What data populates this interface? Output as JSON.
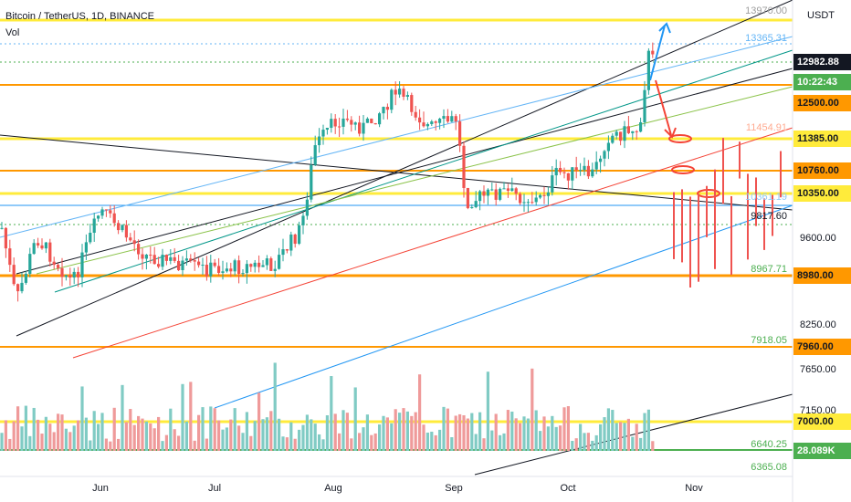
{
  "header": {
    "symbol": "Bitcoin / TetherUS, 1D, BINANCE",
    "indicator": "Vol"
  },
  "price_axis": {
    "currency": "USDT",
    "labels": [
      "13970.00",
      "13365.31",
      "12982.88",
      "10:22:43",
      "12500.00",
      "11454.91",
      "11385.00",
      "10760.00",
      "10350.00",
      "10361.19",
      "9817.60",
      "9600.00",
      "8967.71",
      "8980.00",
      "8250.00",
      "7918.05",
      "7960.00",
      "7650.00",
      "7150.00",
      "7000.00",
      "6640.25",
      "28.089K",
      "6365.08"
    ]
  },
  "time_axis": [
    "Jun",
    "Jul",
    "Aug",
    "Sep",
    "Oct",
    "Nov"
  ]
}
